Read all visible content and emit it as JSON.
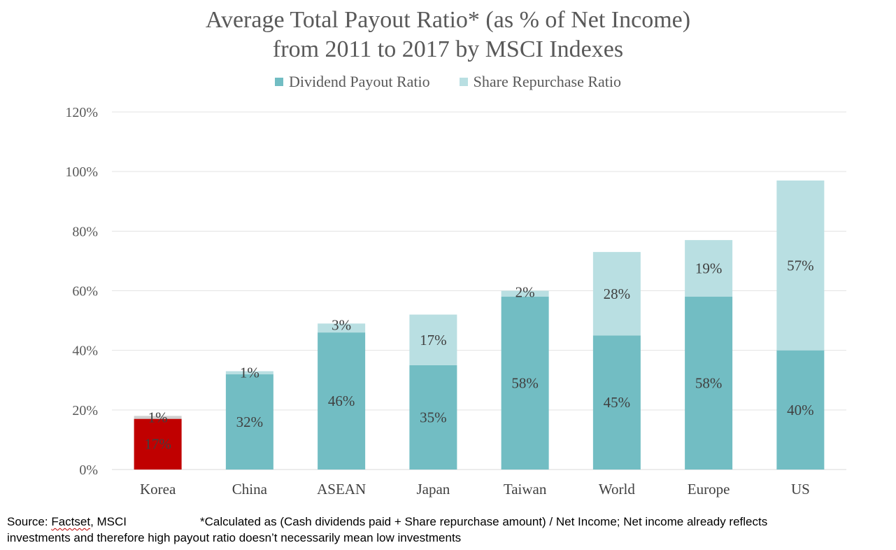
{
  "chart_data": {
    "type": "bar",
    "stacked": true,
    "title_lines": [
      "Average Total Payout Ratio* (as % of Net Income)",
      "from 2011 to 2017 by MSCI Indexes"
    ],
    "categories": [
      "Korea",
      "China",
      "ASEAN",
      "Japan",
      "Taiwan",
      "World",
      "Europe",
      "US"
    ],
    "series": [
      {
        "name": "Dividend Payout Ratio",
        "values": [
          17,
          32,
          46,
          35,
          58,
          45,
          58,
          40
        ],
        "labels": [
          "17%",
          "32%",
          "46%",
          "35%",
          "58%",
          "45%",
          "58%",
          "40%"
        ],
        "color": "#72BDC3"
      },
      {
        "name": "Share Repurchase Ratio",
        "values": [
          1,
          1,
          3,
          17,
          2,
          28,
          19,
          57
        ],
        "labels": [
          "1%",
          "1%",
          "3%",
          "17%",
          "2%",
          "28%",
          "19%",
          "57%"
        ],
        "color": "#B9DFE2"
      }
    ],
    "highlight": {
      "category": "Korea",
      "color": "#C00000"
    },
    "ylim": [
      0,
      120
    ],
    "yticks": [
      0,
      20,
      40,
      60,
      80,
      100,
      120
    ],
    "ytick_labels": [
      "0%",
      "20%",
      "40%",
      "60%",
      "80%",
      "100%",
      "120%"
    ],
    "grid": true,
    "legend_position": "top-center"
  },
  "footnote": {
    "source_prefix": "Source: ",
    "source_name": "Factset",
    "source_suffix": ", MSCI",
    "note_line1": "*Calculated as (Cash dividends paid + Share repurchase amount) / Net Income; Net income already reflects",
    "note_line2": "investments and therefore high payout ratio doesn’t necessarily mean low investments"
  }
}
